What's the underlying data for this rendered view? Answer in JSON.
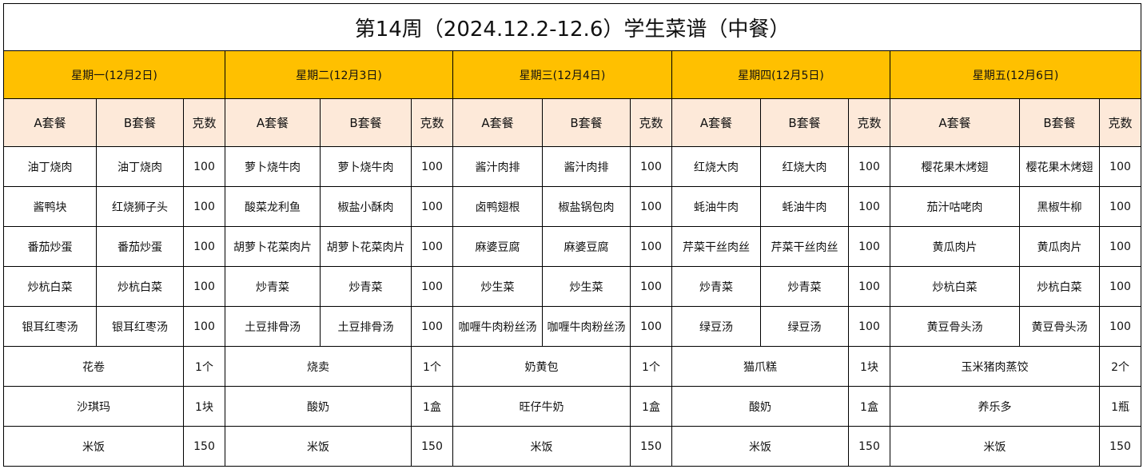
{
  "title": "第14周（2024.12.2-12.6）学生菜谱（中餐）",
  "colors": {
    "day_header": "#ffc000",
    "sub_header": "#fde9d9"
  },
  "sub_headers": {
    "a": "A套餐",
    "b": "B套餐",
    "g": "克数"
  },
  "days": [
    {
      "label": "星期一(12月2日)",
      "dishes": [
        [
          "油丁烧肉",
          "油丁烧肉",
          "100"
        ],
        [
          "酱鸭块",
          "红烧狮子头",
          "100"
        ],
        [
          "番茄炒蛋",
          "番茄炒蛋",
          "100"
        ],
        [
          "炒杭白菜",
          "炒杭白菜",
          "100"
        ],
        [
          "银耳红枣汤",
          "银耳红枣汤",
          "100"
        ]
      ],
      "extras": [
        [
          "花卷",
          "1个"
        ],
        [
          "沙琪玛",
          "1块"
        ],
        [
          "米饭",
          "150"
        ]
      ]
    },
    {
      "label": "星期二(12月3日)",
      "dishes": [
        [
          "萝卜烧牛肉",
          "萝卜烧牛肉",
          "100"
        ],
        [
          "酸菜龙利鱼",
          "椒盐小酥肉",
          "100"
        ],
        [
          "胡萝卜花菜肉片",
          "胡萝卜花菜肉片",
          "100"
        ],
        [
          "炒青菜",
          "炒青菜",
          "100"
        ],
        [
          "土豆排骨汤",
          "土豆排骨汤",
          "100"
        ]
      ],
      "extras": [
        [
          "烧卖",
          "1个"
        ],
        [
          "酸奶",
          "1盒"
        ],
        [
          "米饭",
          "150"
        ]
      ]
    },
    {
      "label": "星期三(12月4日)",
      "dishes": [
        [
          "酱汁肉排",
          "酱汁肉排",
          "100"
        ],
        [
          "卤鸭翅根",
          "椒盐锅包肉",
          "100"
        ],
        [
          "麻婆豆腐",
          "麻婆豆腐",
          "100"
        ],
        [
          "炒生菜",
          "炒生菜",
          "100"
        ],
        [
          "咖喱牛肉粉丝汤",
          "咖喱牛肉粉丝汤",
          "100"
        ]
      ],
      "extras": [
        [
          "奶黄包",
          "1个"
        ],
        [
          "旺仔牛奶",
          "1盒"
        ],
        [
          "米饭",
          "150"
        ]
      ]
    },
    {
      "label": "星期四(12月5日)",
      "dishes": [
        [
          "红烧大肉",
          "红烧大肉",
          "100"
        ],
        [
          "蚝油牛肉",
          "蚝油牛肉",
          "100"
        ],
        [
          "芹菜干丝肉丝",
          "芹菜干丝肉丝",
          "100"
        ],
        [
          "炒青菜",
          "炒青菜",
          "100"
        ],
        [
          "绿豆汤",
          "绿豆汤",
          "100"
        ]
      ],
      "extras": [
        [
          "猫爪糕",
          "1块"
        ],
        [
          "酸奶",
          "1盒"
        ],
        [
          "米饭",
          "150"
        ]
      ]
    },
    {
      "label": "星期五(12月6日)",
      "dishes": [
        [
          "樱花果木烤翅",
          "樱花果木烤翅",
          "100"
        ],
        [
          "茄汁咕咾肉",
          "黑椒牛柳",
          "100"
        ],
        [
          "黄瓜肉片",
          "黄瓜肉片",
          "100"
        ],
        [
          "炒杭白菜",
          "炒杭白菜",
          "100"
        ],
        [
          "黄豆骨头汤",
          "黄豆骨头汤",
          "100"
        ]
      ],
      "extras": [
        [
          "玉米猪肉蒸饺",
          "2个"
        ],
        [
          "养乐多",
          "1瓶"
        ],
        [
          "米饭",
          "150"
        ]
      ]
    }
  ]
}
